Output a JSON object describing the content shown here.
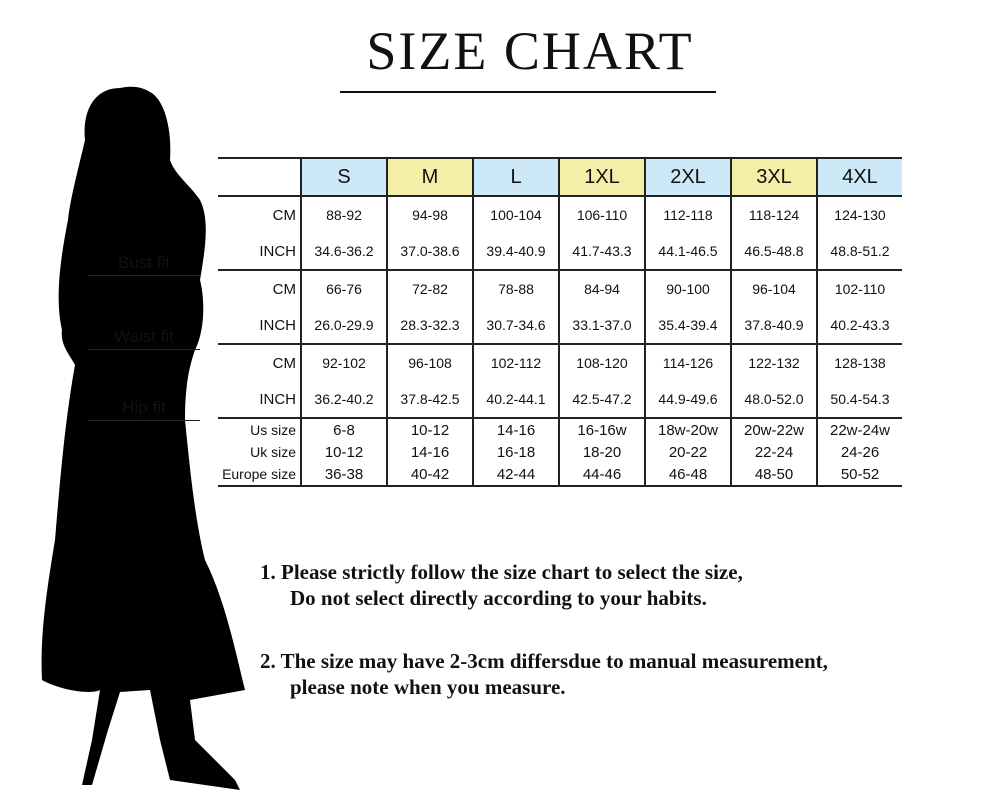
{
  "title": "SIZE CHART",
  "fit_labels": {
    "bust": "Bust fit",
    "waist": "Waist fit",
    "hip": "Hip fit"
  },
  "sizes": [
    "S",
    "M",
    "L",
    "1XL",
    "2XL",
    "3XL",
    "4XL"
  ],
  "header_colors": [
    "#cde8f6",
    "#f3efa8",
    "#cde8f6",
    "#f3efa8",
    "#cde8f6",
    "#f3efa8",
    "#cde8f6"
  ],
  "rows": [
    {
      "label": "CM",
      "values": [
        "88-92",
        "94-98",
        "100-104",
        "106-110",
        "112-118",
        "118-124",
        "124-130"
      ]
    },
    {
      "label": "INCH",
      "values": [
        "34.6-36.2",
        "37.0-38.6",
        "39.4-40.9",
        "41.7-43.3",
        "44.1-46.5",
        "46.5-48.8",
        "48.8-51.2"
      ]
    },
    {
      "label": "CM",
      "values": [
        "66-76",
        "72-82",
        "78-88",
        "84-94",
        "90-100",
        "96-104",
        "102-110"
      ]
    },
    {
      "label": "INCH",
      "values": [
        "26.0-29.9",
        "28.3-32.3",
        "30.7-34.6",
        "33.1-37.0",
        "35.4-39.4",
        "37.8-40.9",
        "40.2-43.3"
      ]
    },
    {
      "label": "CM",
      "values": [
        "92-102",
        "96-108",
        "102-112",
        "108-120",
        "114-126",
        "122-132",
        "128-138"
      ]
    },
    {
      "label": "INCH",
      "values": [
        "36.2-40.2",
        "37.8-42.5",
        "40.2-44.1",
        "42.5-47.2",
        "44.9-49.6",
        "48.0-52.0",
        "50.4-54.3"
      ]
    },
    {
      "label": "Us size",
      "values": [
        "6-8",
        "10-12",
        "14-16",
        "16-16w",
        "18w-20w",
        "20w-22w",
        "22w-24w"
      ]
    },
    {
      "label": "Uk size",
      "values": [
        "10-12",
        "14-16",
        "16-18",
        "18-20",
        "20-22",
        "22-24",
        "24-26"
      ]
    },
    {
      "label": "Europe size",
      "values": [
        "36-38",
        "40-42",
        "42-44",
        "44-46",
        "46-48",
        "48-50",
        "50-52"
      ]
    }
  ],
  "notes": [
    {
      "line1": "1.  Please strictly follow the size chart to select the size,",
      "line2": "Do not select directly according to your habits."
    },
    {
      "line1": "2.  The size may have 2-3cm differsdue to manual measurement,",
      "line2": "please note when you measure."
    }
  ]
}
